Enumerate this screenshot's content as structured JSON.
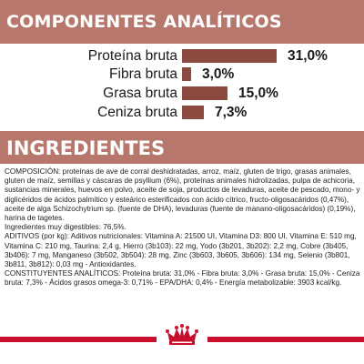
{
  "analytics": {
    "title": "COMPONENTES ANALÍTICOS",
    "bar_color": "#8a4a3f",
    "banner_color": "#b7776c",
    "rows": [
      {
        "label": "Proteína bruta",
        "value": "31,0%",
        "percent": 31.0
      },
      {
        "label": "Fibra bruta",
        "value": "3,0%",
        "percent": 3.0
      },
      {
        "label": "Grasa bruta",
        "value": "15,0%",
        "percent": 15.0
      },
      {
        "label": "Ceniza bruta",
        "value": "7,3%",
        "percent": 7.3
      }
    ]
  },
  "ingredients": {
    "title": "INGREDIENTES",
    "composition": "COMPOSICIÓN: proteínas de ave de corral deshidratadas, arroz, maíz, gluten de trigo, grasas animales, gluten de maíz, semillas y cáscaras de psyllium (6%), proteínas animales hidrolizadas, pulpa de achicoria, sustancias minerales, huevos en polvo, aceite de soja, productos de levaduras, aceite de pescado, mono- y diglicéridos de ácidos palmítico y esteárico esterificados con ácido cítrico, fructo-oligosacáridos (0,47%), aceite de alga Schizochytrium sp. (fuente de DHA), levaduras (fuente de manano-oligosacáridos) (0,19%), harina de tagetes.",
    "digestibility": "Ingredientes muy digestibles: 76,5%.",
    "additives": "ADITIVOS (por kg): Aditivos nutricionales: Vitamina A: 21500 UI, Vitamina D3: 800 UI, Vitamina E: 510 mg, Vitamina C: 210 mg, Taurina: 2,4 g, Hierro (3b103): 22 mg, Yodo (3b201, 3b202): 2,2 mg, Cobre (3b405, 3b406): 7 mg, Manganeso (3b502, 3b504): 28 mg, Zinc (3b603, 3b605, 3b606): 134 mg, Selenio (3b801, 3b811, 3b812): 0,03 mg - Antioxidantes.",
    "constituents": "CONSTITUYENTES ANALÍTICOS: Proteína bruta: 31,0% - Fibra bruta: 3,0% - Grasa bruta: 15,0% - Ceniza bruta: 7,3% - Ácidos grasos omega-3: 0,71% - EPA/DHA: 0,4% - Energía metabolizable: 3903 kcal/kg."
  },
  "footer": {
    "logo_icon": "royal-canin-crown-icon",
    "line_color": "#c8102e"
  }
}
